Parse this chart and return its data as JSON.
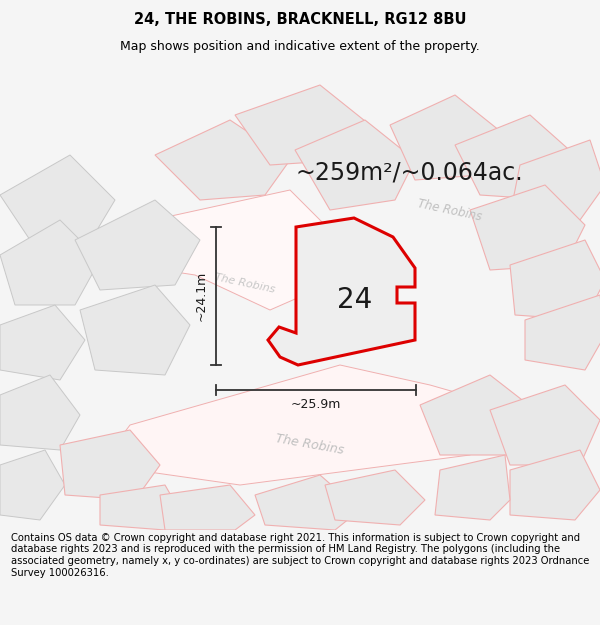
{
  "title": "24, THE ROBINS, BRACKNELL, RG12 8BU",
  "subtitle": "Map shows position and indicative extent of the property.",
  "area_text": "~259m²/~0.064ac.",
  "label_24": "24",
  "dim_vertical": "~24.1m",
  "dim_horizontal": "~25.9m",
  "footer": "Contains OS data © Crown copyright and database right 2021. This information is subject to Crown copyright and database rights 2023 and is reproduced with the permission of HM Land Registry. The polygons (including the associated geometry, namely x, y co-ordinates) are subject to Crown copyright and database rights 2023 Ordnance Survey 100026316.",
  "bg_color": "#f5f5f5",
  "map_bg": "#ffffff",
  "plot_fill": "#eeeeee",
  "plot_edge": "#dd0000",
  "parcel_fill": "#e8e8e8",
  "parcel_edge": "#c8c8c8",
  "road_edge": "#f0b0b0",
  "road_fill": "#fce8e8",
  "title_fontsize": 10.5,
  "subtitle_fontsize": 9,
  "footer_fontsize": 7.2,
  "area_fontsize": 17,
  "label_fontsize": 20,
  "dim_fontsize": 9
}
